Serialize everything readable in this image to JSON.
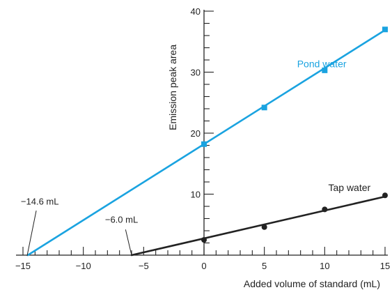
{
  "chart_data": {
    "type": "scatter",
    "title": "",
    "xlabel": "Added volume of standard (mL)",
    "ylabel": "Emission peak area",
    "xlim": [
      -15,
      15
    ],
    "ylim": [
      0,
      40
    ],
    "x_ticks": [
      -15,
      -10,
      -5,
      0,
      5,
      10,
      15
    ],
    "x_tick_labels": [
      "−15",
      "−10",
      "−5",
      "0",
      "5",
      "10",
      "15"
    ],
    "y_ticks": [
      10,
      20,
      30,
      40
    ],
    "y_tick_labels": [
      "10",
      "20",
      "30",
      "40"
    ],
    "y_axis_at_x": 0,
    "grid": false,
    "legend": "none",
    "series": [
      {
        "name": "Pond water",
        "color": "#1aa3e0",
        "marker": "square",
        "points": [
          {
            "x": 0,
            "y": 18.2
          },
          {
            "x": 5,
            "y": 24.2
          },
          {
            "x": 10,
            "y": 30.3
          },
          {
            "x": 15,
            "y": 37.0
          }
        ],
        "fit_line": {
          "x_start": -14.6,
          "x_end": 15,
          "y_start": 0,
          "y_end": 36.9
        }
      },
      {
        "name": "Tap water",
        "color": "#222222",
        "marker": "circle",
        "points": [
          {
            "x": 0,
            "y": 2.5
          },
          {
            "x": 5,
            "y": 4.6
          },
          {
            "x": 10,
            "y": 7.5
          },
          {
            "x": 15,
            "y": 9.8
          }
        ],
        "fit_line": {
          "x_start": -6.0,
          "x_end": 15,
          "y_start": 0,
          "y_end": 9.6
        }
      }
    ],
    "annotations": [
      {
        "text": "−14.6 mL",
        "x": -14.6,
        "y": 0
      },
      {
        "text": "−6.0 mL",
        "x": -6.0,
        "y": 0
      }
    ]
  }
}
